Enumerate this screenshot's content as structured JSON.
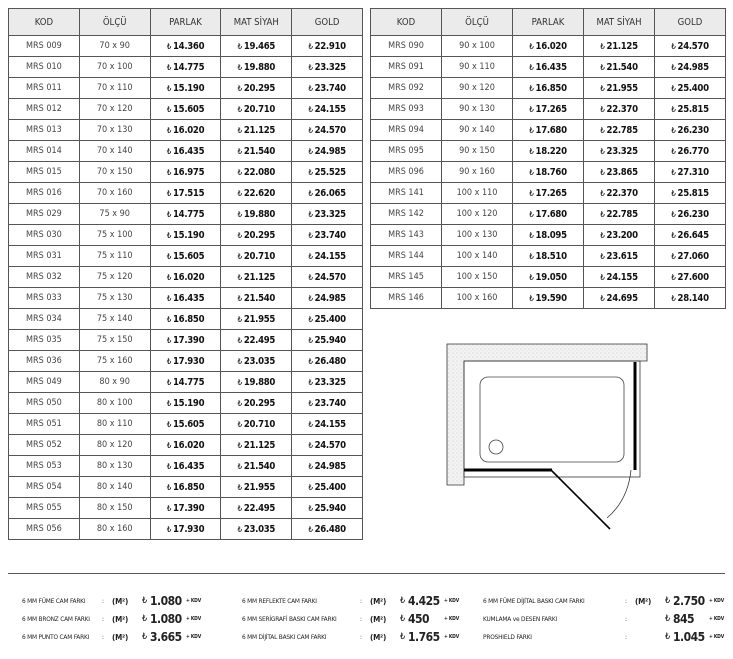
{
  "currency_symbol": "₺",
  "headers": [
    "KOD",
    "ÖLÇÜ",
    "PARLAK",
    "MAT SİYAH",
    "GOLD"
  ],
  "left_table": [
    [
      "MRS 009",
      "70 x 90",
      "14.360",
      "19.465",
      "22.910"
    ],
    [
      "MRS 010",
      "70 x 100",
      "14.775",
      "19.880",
      "23.325"
    ],
    [
      "MRS 011",
      "70 x 110",
      "15.190",
      "20.295",
      "23.740"
    ],
    [
      "MRS 012",
      "70 x 120",
      "15.605",
      "20.710",
      "24.155"
    ],
    [
      "MRS 013",
      "70 x 130",
      "16.020",
      "21.125",
      "24.570"
    ],
    [
      "MRS 014",
      "70 x 140",
      "16.435",
      "21.540",
      "24.985"
    ],
    [
      "MRS 015",
      "70 x 150",
      "16.975",
      "22.080",
      "25.525"
    ],
    [
      "MRS 016",
      "70 x 160",
      "17.515",
      "22.620",
      "26.065"
    ],
    [
      "MRS 029",
      "75 x 90",
      "14.775",
      "19.880",
      "23.325"
    ],
    [
      "MRS 030",
      "75 x 100",
      "15.190",
      "20.295",
      "23.740"
    ],
    [
      "MRS 031",
      "75 x 110",
      "15.605",
      "20.710",
      "24.155"
    ],
    [
      "MRS 032",
      "75 x 120",
      "16.020",
      "21.125",
      "24.570"
    ],
    [
      "MRS 033",
      "75 x 130",
      "16.435",
      "21.540",
      "24.985"
    ],
    [
      "MRS 034",
      "75 x 140",
      "16.850",
      "21.955",
      "25.400"
    ],
    [
      "MRS 035",
      "75 x 150",
      "17.390",
      "22.495",
      "25.940"
    ],
    [
      "MRS 036",
      "75 x 160",
      "17.930",
      "23.035",
      "26.480"
    ],
    [
      "MRS 049",
      "80 x 90",
      "14.775",
      "19.880",
      "23.325"
    ],
    [
      "MRS 050",
      "80 x 100",
      "15.190",
      "20.295",
      "23.740"
    ],
    [
      "MRS 051",
      "80 x 110",
      "15.605",
      "20.710",
      "24.155"
    ],
    [
      "MRS 052",
      "80 x 120",
      "16.020",
      "21.125",
      "24.570"
    ],
    [
      "MRS 053",
      "80 x 130",
      "16.435",
      "21.540",
      "24.985"
    ],
    [
      "MRS 054",
      "80 x 140",
      "16.850",
      "21.955",
      "25.400"
    ],
    [
      "MRS 055",
      "80 x 150",
      "17.390",
      "22.495",
      "25.940"
    ],
    [
      "MRS 056",
      "80 x 160",
      "17.930",
      "23.035",
      "26.480"
    ]
  ],
  "right_table": [
    [
      "MRS 090",
      "90 x 100",
      "16.020",
      "21.125",
      "24.570"
    ],
    [
      "MRS 091",
      "90 x 110",
      "16.435",
      "21.540",
      "24.985"
    ],
    [
      "MRS 092",
      "90 x 120",
      "16.850",
      "21.955",
      "25.400"
    ],
    [
      "MRS 093",
      "90 x 130",
      "17.265",
      "22.370",
      "25.815"
    ],
    [
      "MRS 094",
      "90 x 140",
      "17.680",
      "22.785",
      "26.230"
    ],
    [
      "MRS 095",
      "90 x 150",
      "18.220",
      "23.325",
      "26.770"
    ],
    [
      "MRS 096",
      "90 x 160",
      "18.760",
      "23.865",
      "27.310"
    ],
    [
      "MRS 141",
      "100 x 110",
      "17.265",
      "22.370",
      "25.815"
    ],
    [
      "MRS 142",
      "100 x 120",
      "17.680",
      "22.785",
      "26.230"
    ],
    [
      "MRS 143",
      "100 x 130",
      "18.095",
      "23.200",
      "26.645"
    ],
    [
      "MRS 144",
      "100 x 140",
      "18.510",
      "23.615",
      "27.060"
    ],
    [
      "MRS 145",
      "100 x 150",
      "19.050",
      "24.155",
      "27.600"
    ],
    [
      "MRS 146",
      "100 x 160",
      "19.590",
      "24.695",
      "28.140"
    ]
  ],
  "fees": [
    [
      {
        "label": "6 MM FÜME CAM FARKI",
        "unit": "(M²)",
        "value": "1.080",
        "tax": "+ KDV"
      },
      {
        "label": "6 MM BRONZ CAM FARKI",
        "unit": "(M²)",
        "value": "1.080",
        "tax": "+ KDV"
      },
      {
        "label": "6 MM PUNTO CAM FARKI",
        "unit": "(M²)",
        "value": "3.665",
        "tax": "+ KDV"
      }
    ],
    [
      {
        "label": "6 MM REFLEKTE CAM FARKI",
        "unit": "(M²)",
        "value": "4.425",
        "tax": "+ KDV"
      },
      {
        "label": "6 MM SERİGRAFİ BASKI CAM FARKI",
        "unit": "(M²)",
        "value": "450",
        "tax": "+ KDV"
      },
      {
        "label": "6 MM DİJİTAL BASKI CAM FARKI",
        "unit": "(M²)",
        "value": "1.765",
        "tax": "+ KDV"
      }
    ],
    [
      {
        "label": "6 MM FÜME DİJİTAL BASKI CAM FARKI",
        "unit": "(M²)",
        "value": "2.750",
        "tax": "+ KDV"
      },
      {
        "label": "KUMLAMA ve DESEN FARKI",
        "unit": "",
        "value": "845",
        "tax": "+ KDV"
      },
      {
        "label": "PROSHIELD FARKI",
        "unit": "",
        "value": "1.045",
        "tax": "+ KDV"
      }
    ]
  ]
}
